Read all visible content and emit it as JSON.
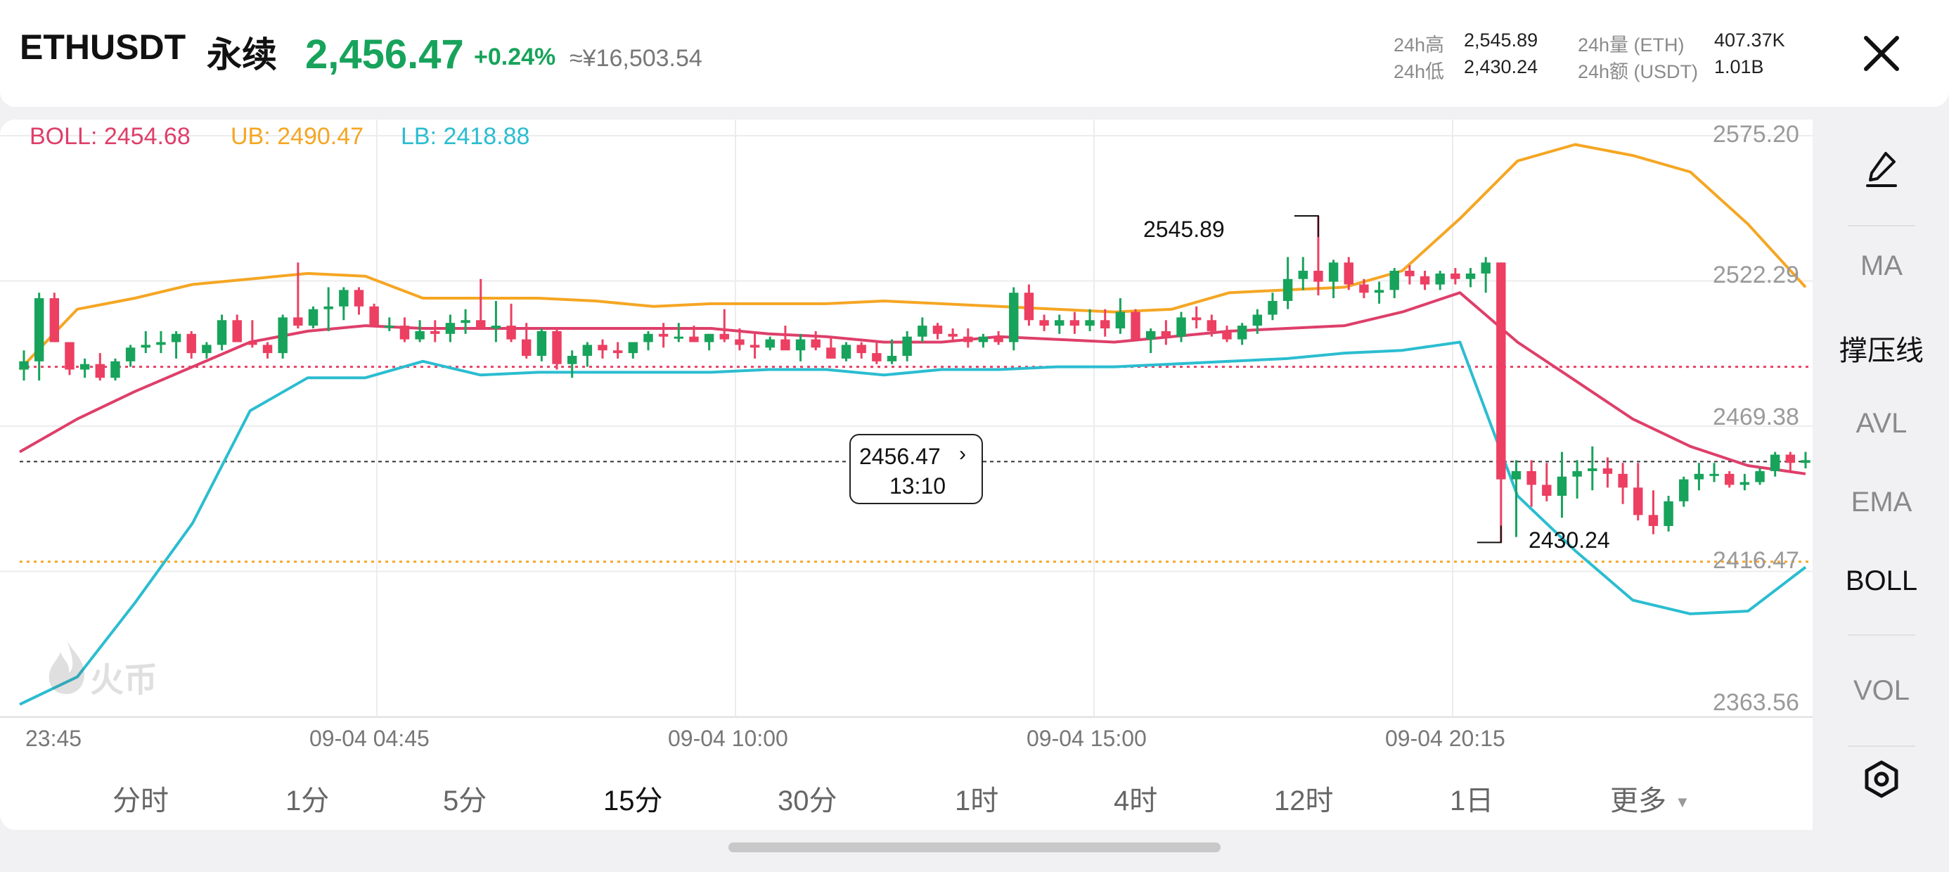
{
  "header": {
    "pair": "ETHUSDT",
    "contract_type": "永续",
    "price": "2,456.47",
    "change": "+0.24%",
    "cny_price": "≈¥16,503.54",
    "stats": [
      {
        "label": "24h高",
        "value": "2,545.89"
      },
      {
        "label": "24h低",
        "value": "2,430.24"
      },
      {
        "label": "24h量 (ETH)",
        "value": "407.37K"
      },
      {
        "label": "24h额 (USDT)",
        "value": "1.01B"
      }
    ],
    "close_icon": "close-icon"
  },
  "boll_legend": {
    "boll": "BOLL: 2454.68",
    "ub": "UB: 2490.47",
    "lb": "LB: 2418.88"
  },
  "colors": {
    "up": "#17a35b",
    "down": "#ec3f62",
    "boll_mid": "#de3f6a",
    "boll_ub": "#f5a623",
    "boll_lb": "#2bbdd0",
    "current_price_line": "#333333"
  },
  "price_axis": [
    "2575.20",
    "2522.29",
    "2469.38",
    "2416.47",
    "2363.56"
  ],
  "time_axis": [
    "23:45",
    "09-04 04:45",
    "09-04 10:00",
    "09-04 15:00",
    "09-04 20:15"
  ],
  "current_price_tag": {
    "price": "2456.47",
    "countdown": "13:10"
  },
  "high_marker": "2545.89",
  "low_marker": "2430.24",
  "watermark": {
    "text": "火币",
    "icon": "huobi-flame-icon"
  },
  "intervals": [
    {
      "label": "分时",
      "active": false
    },
    {
      "label": "1分",
      "active": false
    },
    {
      "label": "5分",
      "active": false
    },
    {
      "label": "15分",
      "active": true
    },
    {
      "label": "30分",
      "active": false
    },
    {
      "label": "1时",
      "active": false
    },
    {
      "label": "4时",
      "active": false
    },
    {
      "label": "12时",
      "active": false
    },
    {
      "label": "1日",
      "active": false
    },
    {
      "label": "更多",
      "active": false
    }
  ],
  "sidebar": {
    "draw_icon": "pen-icon",
    "items": [
      "MA",
      "撑压线",
      "AVL",
      "EMA",
      "BOLL",
      "VOL"
    ],
    "settings_icon": "settings-icon"
  },
  "chart_data": {
    "type": "candlestick",
    "ylim": [
      2363.56,
      2575.2
    ],
    "y_ticks": [
      2575.2,
      2522.29,
      2469.38,
      2416.47,
      2363.56
    ],
    "x_ticks": [
      "23:45",
      "09-04 04:45",
      "09-04 10:00",
      "09-04 15:00",
      "09-04 20:15"
    ],
    "current_price": 2456.47,
    "support_line": 2420.0,
    "resistance_line": 2491.0,
    "high": 2545.89,
    "low": 2430.24,
    "candles": [
      [
        2490,
        2497,
        2486,
        2493
      ],
      [
        2493,
        2518,
        2486,
        2516
      ],
      [
        2516,
        2518,
        2500,
        2500
      ],
      [
        2500,
        2500,
        2488,
        2490
      ],
      [
        2490,
        2494,
        2487,
        2492
      ],
      [
        2492,
        2496,
        2486,
        2487
      ],
      [
        2487,
        2494,
        2486,
        2493
      ],
      [
        2493,
        2499,
        2491,
        2498
      ],
      [
        2498,
        2504,
        2496,
        2499
      ],
      [
        2499,
        2504,
        2496,
        2500
      ],
      [
        2500,
        2504,
        2494,
        2503
      ],
      [
        2503,
        2504,
        2494,
        2496
      ],
      [
        2496,
        2500,
        2494,
        2499
      ],
      [
        2499,
        2510,
        2497,
        2508
      ],
      [
        2508,
        2510,
        2500,
        2500
      ],
      [
        2500,
        2508,
        2498,
        2499
      ],
      [
        2499,
        2500,
        2494,
        2496
      ],
      [
        2496,
        2510,
        2494,
        2509
      ],
      [
        2509,
        2529,
        2505,
        2506
      ],
      [
        2506,
        2513,
        2505,
        2512
      ],
      [
        2512,
        2520,
        2504,
        2513
      ],
      [
        2513,
        2520,
        2508,
        2519
      ],
      [
        2519,
        2520,
        2510,
        2513
      ],
      [
        2513,
        2514,
        2506,
        2506
      ],
      [
        2506,
        2509,
        2504,
        2506
      ],
      [
        2506,
        2509,
        2500,
        2501
      ],
      [
        2501,
        2508,
        2500,
        2504
      ],
      [
        2504,
        2508,
        2500,
        2503
      ],
      [
        2503,
        2510,
        2500,
        2507
      ],
      [
        2507,
        2512,
        2503,
        2508
      ],
      [
        2508,
        2523,
        2505,
        2505
      ],
      [
        2505,
        2515,
        2500,
        2506
      ],
      [
        2506,
        2514,
        2500,
        2501
      ],
      [
        2501,
        2507,
        2494,
        2495
      ],
      [
        2495,
        2505,
        2493,
        2504
      ],
      [
        2504,
        2505,
        2490,
        2492
      ],
      [
        2492,
        2497,
        2487,
        2495
      ],
      [
        2495,
        2500,
        2491,
        2499
      ],
      [
        2499,
        2501,
        2494,
        2497
      ],
      [
        2497,
        2500,
        2494,
        2496
      ],
      [
        2496,
        2500,
        2494,
        2500
      ],
      [
        2500,
        2504,
        2497,
        2503
      ],
      [
        2503,
        2507,
        2498,
        2502
      ],
      [
        2502,
        2507,
        2500,
        2502
      ],
      [
        2502,
        2506,
        2500,
        2500
      ],
      [
        2500,
        2503,
        2497,
        2503
      ],
      [
        2503,
        2512,
        2500,
        2501
      ],
      [
        2501,
        2505,
        2497,
        2499
      ],
      [
        2499,
        2503,
        2494,
        2498
      ],
      [
        2498,
        2502,
        2497,
        2501
      ],
      [
        2501,
        2506,
        2498,
        2497
      ],
      [
        2497,
        2503,
        2493,
        2501
      ],
      [
        2501,
        2504,
        2497,
        2498
      ],
      [
        2498,
        2502,
        2494,
        2494
      ],
      [
        2494,
        2500,
        2493,
        2499
      ],
      [
        2499,
        2500,
        2494,
        2496
      ],
      [
        2496,
        2500,
        2492,
        2493
      ],
      [
        2493,
        2501,
        2492,
        2495
      ],
      [
        2495,
        2504,
        2493,
        2502
      ],
      [
        2502,
        2509,
        2500,
        2506
      ],
      [
        2506,
        2507,
        2501,
        2503
      ],
      [
        2503,
        2505,
        2500,
        2502
      ],
      [
        2502,
        2505,
        2498,
        2500
      ],
      [
        2500,
        2503,
        2498,
        2502
      ],
      [
        2502,
        2504,
        2499,
        2500
      ],
      [
        2500,
        2520,
        2497,
        2518
      ],
      [
        2518,
        2521,
        2506,
        2508
      ],
      [
        2508,
        2510,
        2504,
        2506
      ],
      [
        2506,
        2510,
        2503,
        2508
      ],
      [
        2508,
        2511,
        2503,
        2506
      ],
      [
        2506,
        2512,
        2504,
        2508
      ],
      [
        2508,
        2512,
        2502,
        2505
      ],
      [
        2505,
        2516,
        2503,
        2511
      ],
      [
        2511,
        2512,
        2501,
        2501
      ],
      [
        2501,
        2505,
        2496,
        2504
      ],
      [
        2504,
        2508,
        2499,
        2502
      ],
      [
        2502,
        2511,
        2500,
        2509
      ],
      [
        2509,
        2513,
        2505,
        2508
      ],
      [
        2508,
        2510,
        2502,
        2504
      ],
      [
        2504,
        2506,
        2500,
        2501
      ],
      [
        2501,
        2507,
        2499,
        2506
      ],
      [
        2506,
        2512,
        2503,
        2510
      ],
      [
        2510,
        2518,
        2508,
        2515
      ],
      [
        2515,
        2531,
        2512,
        2523
      ],
      [
        2523,
        2531,
        2519,
        2526
      ],
      [
        2526,
        2546,
        2517,
        2522
      ],
      [
        2522,
        2530,
        2516,
        2529
      ],
      [
        2529,
        2531,
        2519,
        2521
      ],
      [
        2521,
        2523,
        2516,
        2518
      ],
      [
        2518,
        2522,
        2514,
        2519
      ],
      [
        2519,
        2527,
        2516,
        2526
      ],
      [
        2526,
        2528,
        2521,
        2524
      ],
      [
        2524,
        2526,
        2519,
        2521
      ],
      [
        2521,
        2526,
        2519,
        2525
      ],
      [
        2525,
        2527,
        2521,
        2523
      ],
      [
        2523,
        2527,
        2520,
        2525
      ],
      [
        2525,
        2531,
        2518,
        2529
      ],
      [
        2529,
        2529,
        2427,
        2450
      ],
      [
        2450,
        2457,
        2429,
        2453
      ],
      [
        2453,
        2457,
        2440,
        2448
      ],
      [
        2448,
        2456,
        2442,
        2444
      ],
      [
        2444,
        2460,
        2436,
        2451
      ],
      [
        2451,
        2457,
        2443,
        2453
      ],
      [
        2453,
        2462,
        2446,
        2454
      ],
      [
        2454,
        2458,
        2447,
        2452
      ],
      [
        2452,
        2456,
        2441,
        2447
      ],
      [
        2447,
        2456,
        2435,
        2437
      ],
      [
        2437,
        2446,
        2430,
        2433
      ],
      [
        2433,
        2444,
        2431,
        2442
      ],
      [
        2442,
        2451,
        2440,
        2450
      ],
      [
        2450,
        2456,
        2446,
        2452
      ],
      [
        2452,
        2456,
        2449,
        2452
      ],
      [
        2452,
        2453,
        2447,
        2448
      ],
      [
        2448,
        2452,
        2446,
        2449
      ],
      [
        2449,
        2454,
        2448,
        2453
      ],
      [
        2453,
        2460,
        2451,
        2459
      ],
      [
        2459,
        2460,
        2453,
        2456
      ],
      [
        2456,
        2460,
        2454,
        2457
      ]
    ],
    "series": [
      {
        "name": "UB",
        "values": [
          2490,
          2512,
          2516,
          2521,
          2523,
          2525,
          2524,
          2516,
          2516,
          2516,
          2515,
          2513,
          2514,
          2514,
          2514,
          2515,
          2514,
          2513,
          2512,
          2511,
          2512,
          2518,
          2519,
          2520,
          2526,
          2545,
          2566,
          2572,
          2568,
          2562,
          2543,
          2520
        ]
      },
      {
        "name": "BOLL",
        "values": [
          2460,
          2472,
          2482,
          2491,
          2500,
          2504,
          2506,
          2505,
          2505,
          2505,
          2505,
          2505,
          2505,
          2503,
          2502,
          2500,
          2500,
          2502,
          2501,
          2500,
          2502,
          2504,
          2505,
          2506,
          2511,
          2518,
          2500,
          2486,
          2472,
          2462,
          2455,
          2452
        ]
      },
      {
        "name": "LB",
        "values": [
          2368,
          2378,
          2405,
          2434,
          2475,
          2487,
          2487,
          2493,
          2488,
          2489,
          2489,
          2489,
          2489,
          2490,
          2490,
          2488,
          2490,
          2490,
          2491,
          2491,
          2492,
          2493,
          2494,
          2496,
          2497,
          2500,
          2444,
          2424,
          2406,
          2401,
          2402,
          2418
        ]
      }
    ]
  }
}
